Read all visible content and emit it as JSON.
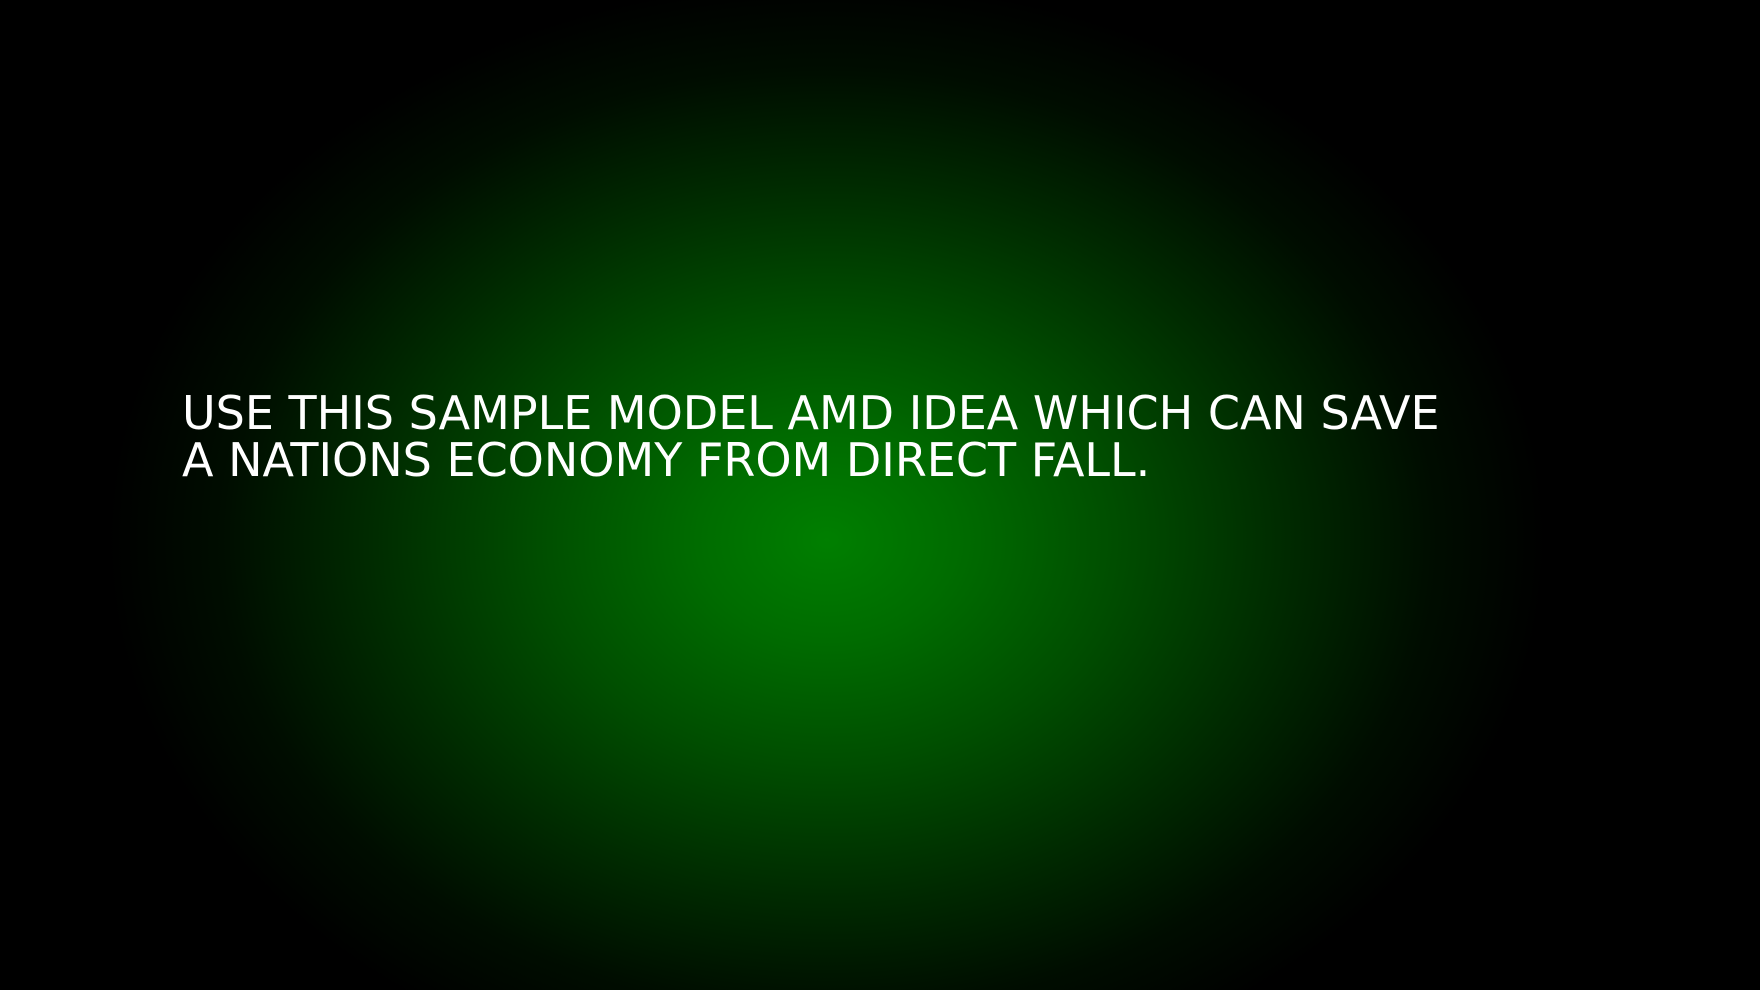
{
  "slide": {
    "headline_lines": [
      "USE THIS SAMPLE MODEL AMD IDEA WHICH CAN SAVE",
      "A NATIONS ECONOMY FROM DIRECT FALL."
    ]
  },
  "colors": {
    "background_center": "#007f00",
    "background_edge": "#000000",
    "text": "#ffffff"
  }
}
